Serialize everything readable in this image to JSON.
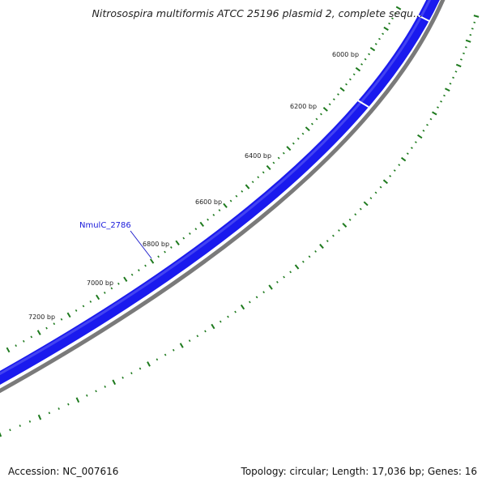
{
  "title": "Nitrosospira multiformis ATCC 25196 plasmid 2, complete sequ...",
  "footer": {
    "accession": "Accession: NC_007616",
    "summary": "Topology: circular; Length: 17,036 bp; Genes: 16"
  },
  "colors": {
    "gene_band": "#1a1aee",
    "gene_band_light": "#5252f2",
    "backbone": "#7a7a7a",
    "gc_ticks": "#1e7a1e",
    "label_line": "#2020cc"
  },
  "position_labels": [
    {
      "text": "6000 bp",
      "bp": 6000
    },
    {
      "text": "6200 bp",
      "bp": 6200
    },
    {
      "text": "6400 bp",
      "bp": 6400
    },
    {
      "text": "6600 bp",
      "bp": 6600
    },
    {
      "text": "6800 bp",
      "bp": 6800
    },
    {
      "text": "7000 bp",
      "bp": 7000
    },
    {
      "text": "7200 bp",
      "bp": 7200
    }
  ],
  "gene_labels": [
    {
      "text": "NmulC_2786"
    }
  ]
}
